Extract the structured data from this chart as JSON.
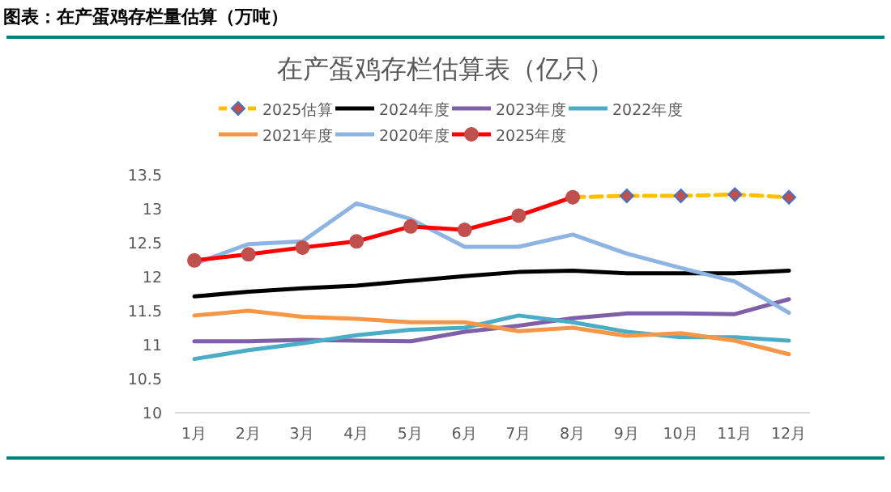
{
  "chart_data": {
    "type": "line",
    "title": "在产蛋鸡存栏估算表（亿只）",
    "annotations": [
      "图表：在产蛋鸡存栏量估算（万吨）"
    ],
    "categories": [
      "1月",
      "2月",
      "3月",
      "4月",
      "5月",
      "6月",
      "7月",
      "8月",
      "9月",
      "10月",
      "11月",
      "12月"
    ],
    "ylim": [
      10,
      13.5
    ],
    "yticks": [
      10,
      10.5,
      11,
      11.5,
      12,
      12.5,
      13,
      13.5
    ],
    "grid": false,
    "legend": "top",
    "series": [
      {
        "name": "2025估算",
        "color": "#ffc000",
        "line_style": "dashed",
        "marker": "diamond",
        "values": [
          null,
          null,
          null,
          null,
          null,
          null,
          null,
          13.17,
          13.19,
          13.19,
          13.21,
          13.17
        ]
      },
      {
        "name": "2024年度",
        "color": "#000000",
        "line_style": "solid",
        "marker": "none",
        "values": [
          11.71,
          11.78,
          11.83,
          11.87,
          11.94,
          12.01,
          12.07,
          12.09,
          12.05,
          12.05,
          12.05,
          12.09
        ]
      },
      {
        "name": "2023年度",
        "color": "#7f5fa6",
        "line_style": "solid",
        "marker": "none",
        "values": [
          11.05,
          11.05,
          11.07,
          11.06,
          11.05,
          11.19,
          11.28,
          11.39,
          11.46,
          11.46,
          11.45,
          11.67
        ]
      },
      {
        "name": "2022年度",
        "color": "#4bacc6",
        "line_style": "solid",
        "marker": "none",
        "values": [
          10.79,
          10.92,
          11.02,
          11.14,
          11.22,
          11.25,
          11.43,
          11.33,
          11.19,
          11.11,
          11.11,
          11.06
        ]
      },
      {
        "name": "2021年度",
        "color": "#f79646",
        "line_style": "solid",
        "marker": "none",
        "values": [
          11.43,
          11.5,
          11.41,
          11.38,
          11.33,
          11.33,
          11.2,
          11.25,
          11.13,
          11.17,
          11.06,
          10.86
        ]
      },
      {
        "name": "2020年度",
        "color": "#8eb4e3",
        "line_style": "solid",
        "marker": "none",
        "values": [
          12.19,
          12.48,
          12.52,
          13.08,
          12.85,
          12.44,
          12.44,
          12.62,
          12.34,
          12.13,
          11.93,
          11.47
        ]
      },
      {
        "name": "2025年度",
        "color": "#ff0000",
        "line_style": "solid",
        "marker": "circle",
        "values": [
          12.24,
          12.33,
          12.43,
          12.52,
          12.74,
          12.69,
          12.9,
          13.17,
          null,
          null,
          null,
          null
        ]
      }
    ]
  }
}
